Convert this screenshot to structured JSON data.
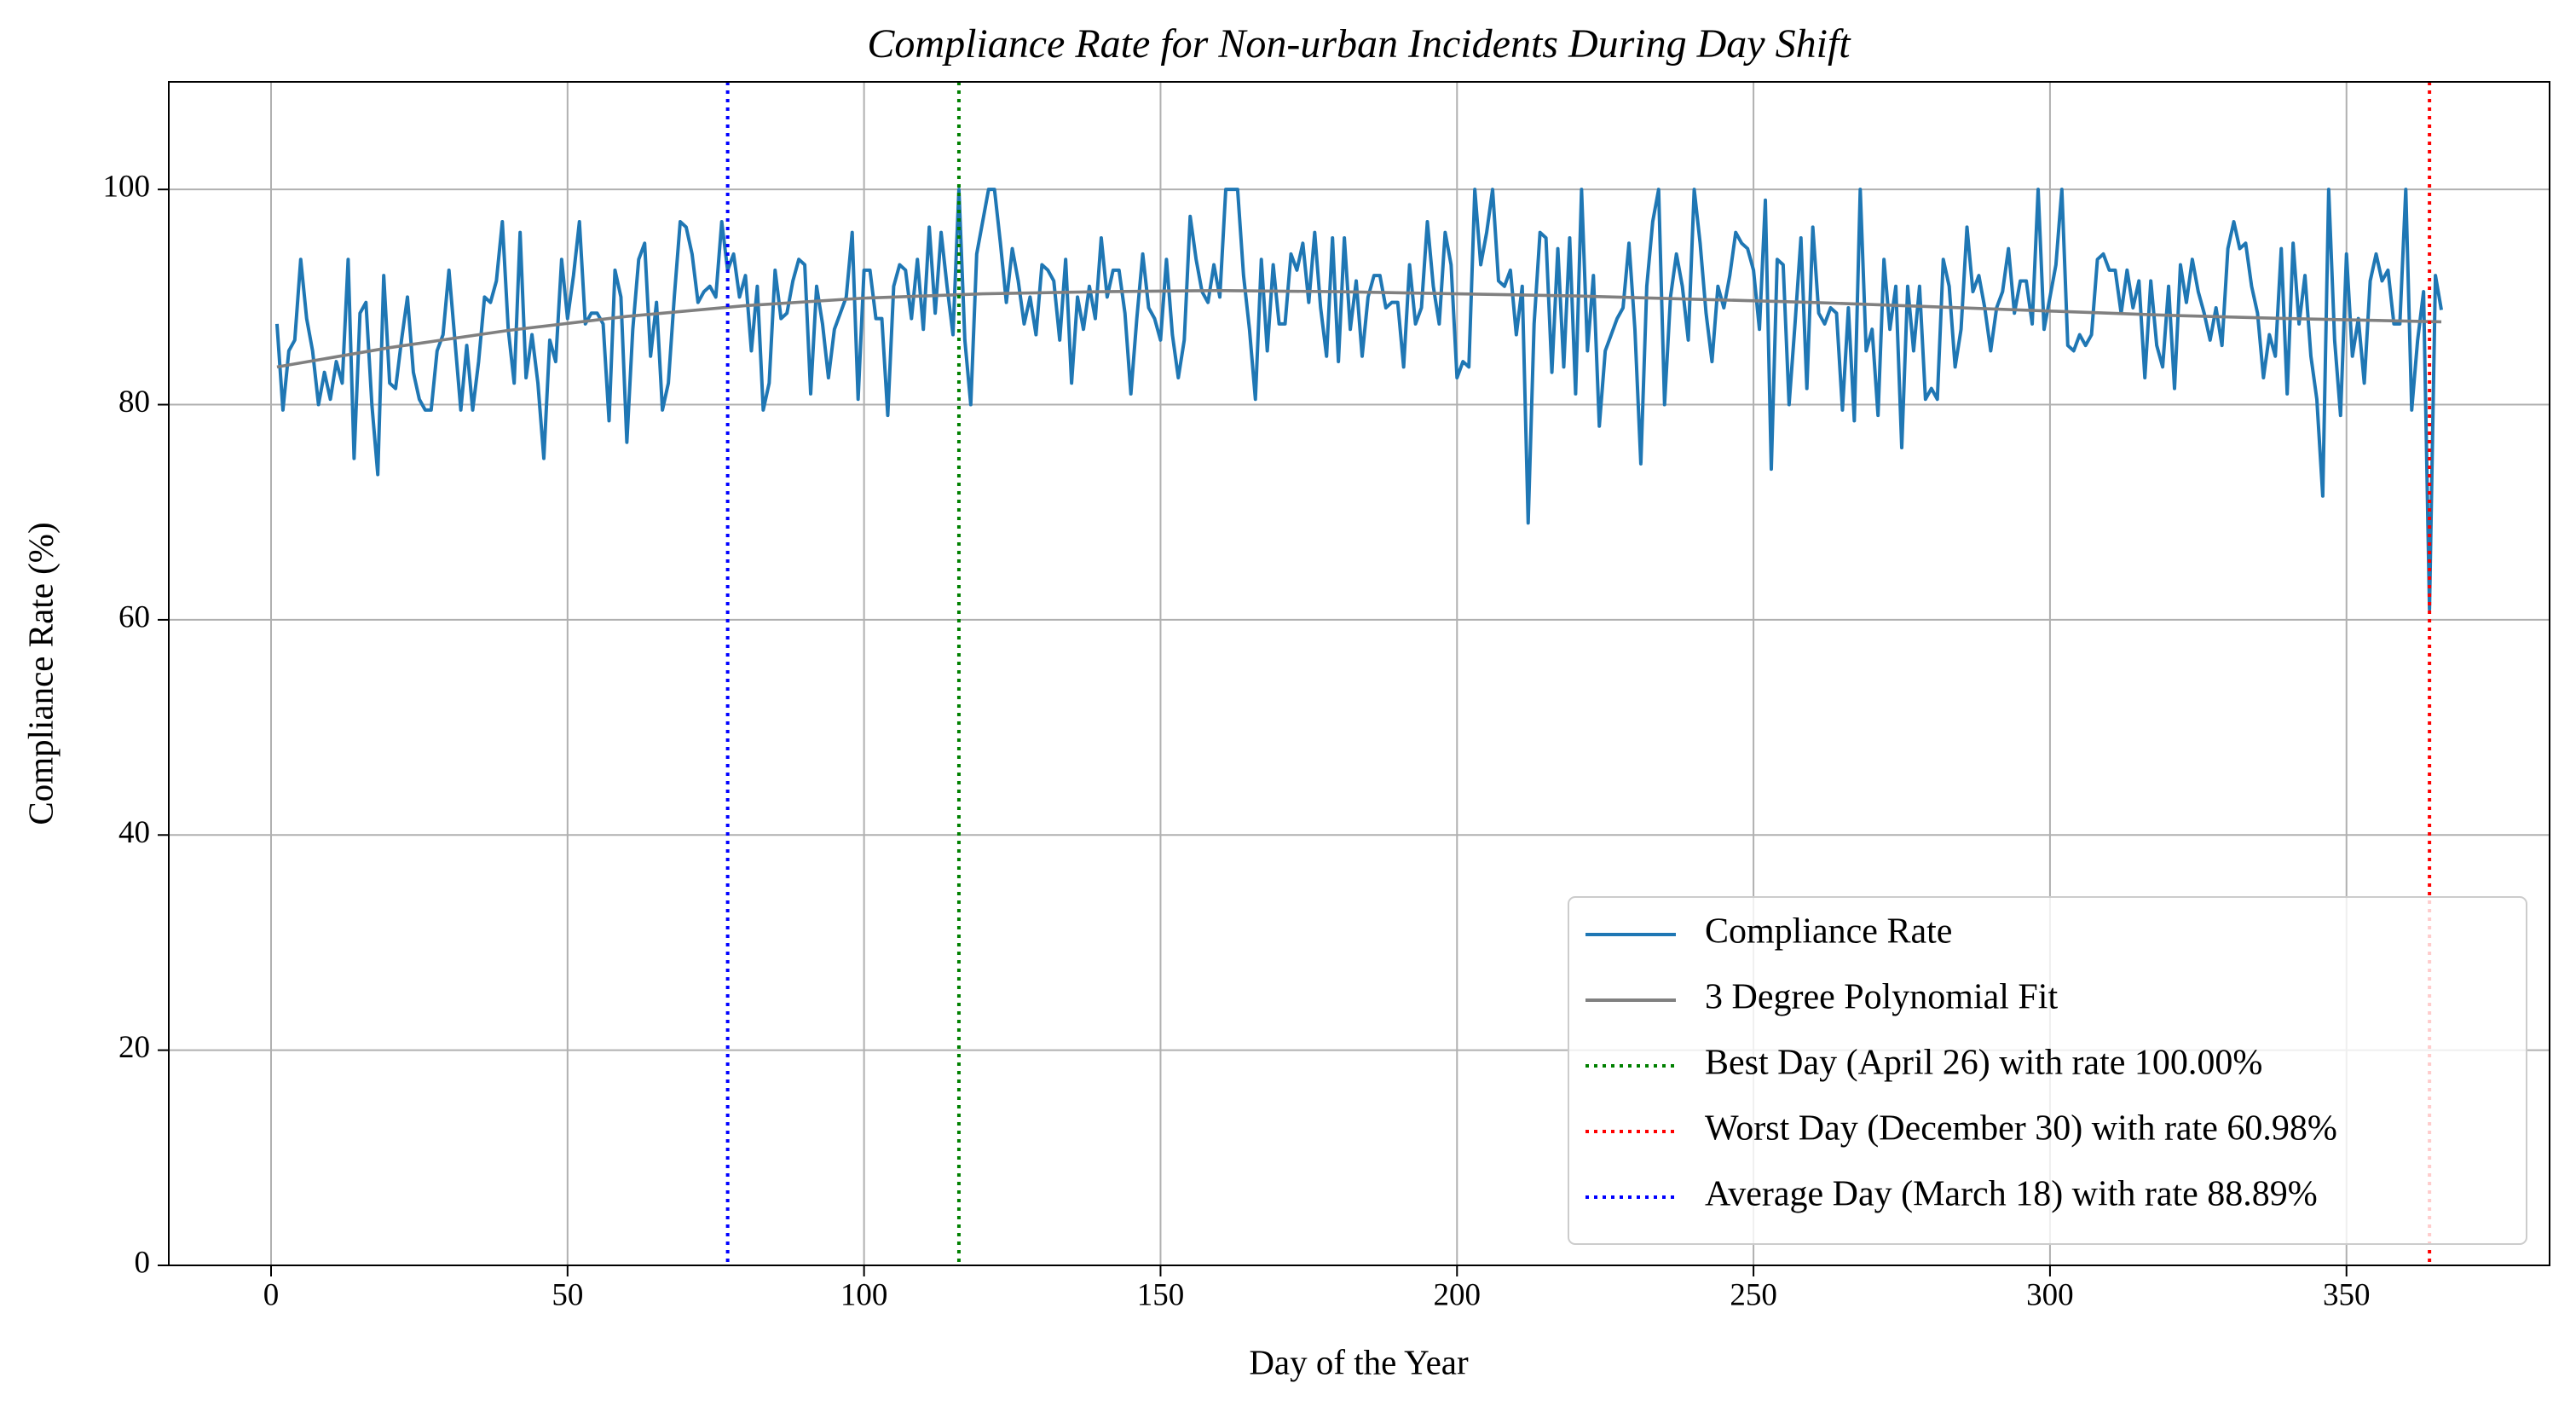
{
  "chart_data": {
    "type": "line",
    "title": "Compliance Rate for Non-urban Incidents During Day Shift",
    "x_label": "Day of the Year",
    "y_label": "Compliance Rate (%)",
    "xlim": [
      -17.25,
      384.25
    ],
    "ylim": [
      0,
      110
    ],
    "xticks": [
      0,
      50,
      100,
      150,
      200,
      250,
      300,
      350
    ],
    "yticks": [
      0,
      20,
      40,
      60,
      80,
      100
    ],
    "grid": true,
    "legend": "lower right",
    "series": [
      {
        "name": "Compliance Rate",
        "color": "#1f77b4",
        "style": "solid",
        "x": [
          1,
          2,
          3,
          4,
          5,
          6,
          7,
          8,
          9,
          10,
          11,
          12,
          13,
          14,
          15,
          16,
          17,
          18,
          19,
          20,
          21,
          22,
          23,
          24,
          25,
          26,
          27,
          28,
          29,
          30,
          31,
          32,
          33,
          34,
          35,
          36,
          37,
          38,
          39,
          40,
          41,
          42,
          43,
          44,
          45,
          46,
          47,
          48,
          49,
          50,
          51,
          52,
          53,
          54,
          55,
          56,
          57,
          58,
          59,
          60,
          61,
          62,
          63,
          64,
          65,
          66,
          67,
          68,
          69,
          70,
          71,
          72,
          73,
          74,
          75,
          76,
          77,
          78,
          79,
          80,
          81,
          82,
          83,
          84,
          85,
          86,
          87,
          88,
          89,
          90,
          91,
          92,
          93,
          94,
          95,
          96,
          97,
          98,
          99,
          100,
          101,
          102,
          103,
          104,
          105,
          106,
          107,
          108,
          109,
          110,
          111,
          112,
          113,
          114,
          115,
          116,
          117,
          118,
          119,
          120,
          121,
          122,
          123,
          124,
          125,
          126,
          127,
          128,
          129,
          130,
          131,
          132,
          133,
          134,
          135,
          136,
          137,
          138,
          139,
          140,
          141,
          142,
          143,
          144,
          145,
          146,
          147,
          148,
          149,
          150,
          151,
          152,
          153,
          154,
          155,
          156,
          157,
          158,
          159,
          160,
          161,
          162,
          163,
          164,
          165,
          166,
          167,
          168,
          169,
          170,
          171,
          172,
          173,
          174,
          175,
          176,
          177,
          178,
          179,
          180,
          181,
          182,
          183,
          184,
          185,
          186,
          187,
          188,
          189,
          190,
          191,
          192,
          193,
          194,
          195,
          196,
          197,
          198,
          199,
          200,
          201,
          202,
          203,
          204,
          205,
          206,
          207,
          208,
          209,
          210,
          211,
          212,
          213,
          214,
          215,
          216,
          217,
          218,
          219,
          220,
          221,
          222,
          223,
          224,
          225,
          226,
          227,
          228,
          229,
          230,
          231,
          232,
          233,
          234,
          235,
          236,
          237,
          238,
          239,
          240,
          241,
          242,
          243,
          244,
          245,
          246,
          247,
          248,
          249,
          250,
          251,
          252,
          253,
          254,
          255,
          256,
          257,
          258,
          259,
          260,
          261,
          262,
          263,
          264,
          265,
          266,
          267,
          268,
          269,
          270,
          271,
          272,
          273,
          274,
          275,
          276,
          277,
          278,
          279,
          280,
          281,
          282,
          283,
          284,
          285,
          286,
          287,
          288,
          289,
          290,
          291,
          292,
          293,
          294,
          295,
          296,
          297,
          298,
          299,
          300,
          301,
          302,
          303,
          304,
          305,
          306,
          307,
          308,
          309,
          310,
          311,
          312,
          313,
          314,
          315,
          316,
          317,
          318,
          319,
          320,
          321,
          322,
          323,
          324,
          325,
          326,
          327,
          328,
          329,
          330,
          331,
          332,
          333,
          334,
          335,
          336,
          337,
          338,
          339,
          340,
          341,
          342,
          343,
          344,
          345,
          346,
          347,
          348,
          349,
          350,
          351,
          352,
          353,
          354,
          355,
          356,
          357,
          358,
          359,
          360,
          361,
          362,
          363,
          364,
          365,
          366
        ],
        "values": [
          87.5,
          79.5,
          85,
          86,
          93.5,
          88,
          85,
          80,
          83,
          80.5,
          84,
          82,
          93.5,
          75,
          88.5,
          89.5,
          80,
          73.5,
          92,
          82,
          81.5,
          86,
          90,
          83,
          80.5,
          79.5,
          79.5,
          85,
          86.5,
          92.5,
          86,
          79.5,
          85.5,
          79.5,
          84,
          90,
          89.5,
          91.5,
          97,
          87,
          82,
          96,
          82.5,
          86.5,
          82,
          75,
          86,
          84,
          93.5,
          88,
          92,
          97,
          87.5,
          88.5,
          88.5,
          87.5,
          78.5,
          92.5,
          90,
          76.5,
          87,
          93.5,
          95,
          84.5,
          89.5,
          79.5,
          82,
          90,
          97,
          96.5,
          94,
          89.5,
          90.5,
          91,
          90,
          97,
          92.5,
          94,
          90,
          92,
          85,
          91,
          79.5,
          82,
          92.5,
          88,
          88.5,
          91.5,
          93.5,
          93,
          81,
          91,
          87.5,
          82.5,
          87,
          88.5,
          90,
          96,
          80.5,
          92.5,
          92.5,
          88,
          88,
          79,
          91,
          93,
          92.5,
          88,
          93.5,
          87,
          96.5,
          88.5,
          96,
          91,
          86.5,
          100,
          86,
          80,
          94,
          97,
          100,
          100,
          95,
          89.5,
          94.5,
          91.5,
          87.5,
          90,
          86.5,
          93,
          92.5,
          91.5,
          86,
          93.5,
          82,
          90,
          87,
          91,
          88,
          95.5,
          90,
          92.5,
          92.5,
          88.5,
          81,
          88,
          94,
          89,
          88,
          86,
          93.5,
          86.5,
          82.5,
          86,
          97.5,
          93.5,
          90.5,
          89.5,
          93,
          90,
          100,
          100,
          100,
          92,
          87,
          80.5,
          93.5,
          85,
          93,
          87.5,
          87.5,
          94,
          92.5,
          95,
          89.5,
          96,
          89,
          84.5,
          95.5,
          84,
          95.5,
          87,
          91.5,
          84.5,
          90,
          92,
          92,
          89,
          89.5,
          89.5,
          83.5,
          93,
          87.5,
          89,
          97,
          91,
          87.5,
          96,
          93,
          82.5,
          84,
          83.5,
          100,
          93,
          96,
          100,
          91.5,
          91,
          92.5,
          86.5,
          91,
          69,
          87.5,
          96,
          95.5,
          83,
          94.5,
          83.5,
          95.5,
          81,
          100,
          85,
          92,
          78,
          85,
          86.5,
          88,
          89,
          95,
          87,
          74.5,
          91,
          97,
          100,
          80,
          90,
          94,
          91,
          86,
          100,
          95,
          88.5,
          84,
          91,
          89,
          92,
          96,
          95,
          94.5,
          92.5,
          87,
          99,
          74,
          93.5,
          93,
          80,
          87.5,
          95.5,
          81.5,
          96.5,
          88.5,
          87.5,
          89,
          88.5,
          79.5,
          89,
          78.5,
          100,
          85,
          87,
          79,
          93.5,
          87,
          91,
          76,
          91,
          85,
          91,
          80.5,
          81.5,
          80.5,
          93.5,
          91,
          83.5,
          87,
          96.5,
          90.5,
          92,
          89,
          85,
          89,
          90.5,
          94.5,
          88.5,
          91.5,
          91.5,
          87.5,
          100,
          87,
          90,
          93,
          100,
          85.5,
          85,
          86.5,
          85.5,
          86.5,
          93.5,
          94,
          92.5,
          92.5,
          88.5,
          92.5,
          89,
          91.5,
          82.5,
          91.5,
          85.5,
          83.5,
          91,
          81.5,
          93,
          89.5,
          93.5,
          90.5,
          88.5,
          86,
          89,
          85.5,
          94.5,
          97,
          94.5,
          95,
          91,
          88.5,
          82.5,
          86.5,
          84.5,
          94.5,
          81,
          95,
          87.5,
          92,
          84.5,
          80.5,
          71.5,
          100,
          86,
          79,
          94,
          84.5,
          88,
          82,
          91.5,
          94,
          91.5,
          92.5,
          87.5,
          87.5,
          100,
          79.5,
          86,
          90.5,
          60.98,
          92,
          88.8
        ]
      },
      {
        "name": "3 Degree Polynomial Fit",
        "color": "#808080",
        "style": "solid",
        "x": [
          1,
          20,
          40,
          60,
          80,
          100,
          120,
          140,
          160,
          180,
          200,
          220,
          240,
          260,
          280,
          300,
          320,
          340,
          366
        ],
        "values": [
          83.5,
          85.3,
          86.9,
          88.2,
          89.2,
          89.9,
          90.3,
          90.5,
          90.6,
          90.5,
          90.3,
          90.1,
          89.8,
          89.5,
          89.1,
          88.7,
          88.3,
          88.0,
          87.7
        ]
      }
    ],
    "vlines": [
      {
        "name": "Best Day (April 26) with rate 100.00%",
        "x": 116,
        "color": "#008000"
      },
      {
        "name": "Worst Day (December 30) with rate 60.98%",
        "x": 364,
        "color": "#ff0000"
      },
      {
        "name": "Average Day (March 18) with rate 88.89%",
        "x": 77,
        "color": "#0000ff"
      }
    ]
  }
}
